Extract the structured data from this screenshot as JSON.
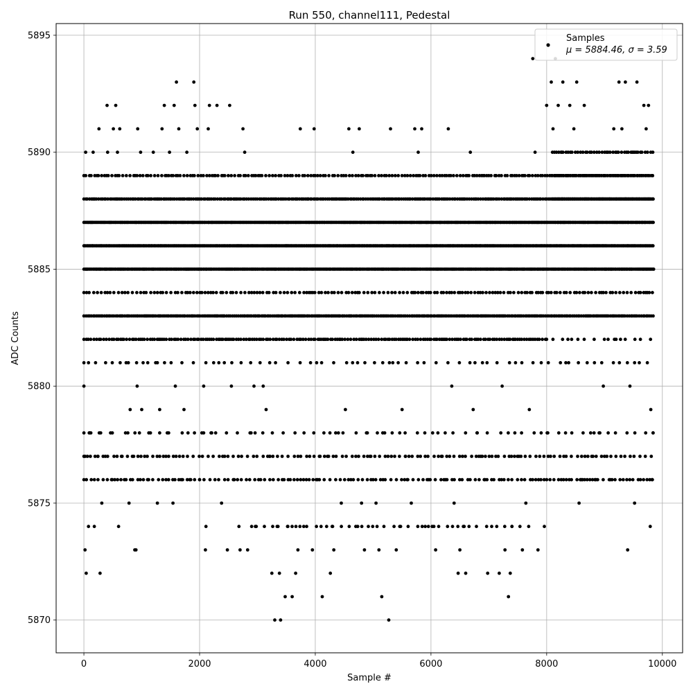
{
  "chart_data": {
    "type": "scatter",
    "title": "Run 550, channel111, Pedestal",
    "xlabel": "Sample #",
    "ylabel": "ADC Counts",
    "xlim": [
      -480,
      10350
    ],
    "ylim": [
      5868.6,
      5895.5
    ],
    "x_ticks": [
      0,
      2000,
      4000,
      6000,
      8000,
      10000
    ],
    "x_tick_labels": [
      "0",
      "2000",
      "4000",
      "6000",
      "8000",
      "10000"
    ],
    "y_ticks": [
      5870,
      5875,
      5880,
      5885,
      5890,
      5895
    ],
    "y_tick_labels": [
      "5870",
      "5875",
      "5880",
      "5885",
      "5890",
      "5895"
    ],
    "grid": true,
    "legend": {
      "position": "top-right",
      "series_label": "Samples",
      "stats_label": "μ = 5884.46, σ = 3.59"
    },
    "marker_color": "#000000",
    "series": [
      {
        "name": "Samples",
        "points": [
          [
            0,
            5880
          ],
          [
            20,
            5877
          ],
          [
            20,
            5873
          ],
          [
            30,
            5890
          ],
          [
            40,
            5872
          ],
          [
            60,
            5877
          ],
          [
            80,
            5874
          ],
          [
            80,
            5881
          ],
          [
            100,
            5878
          ],
          [
            120,
            5878
          ],
          [
            160,
            5890
          ],
          [
            180,
            5874
          ],
          [
            240,
            5877
          ],
          [
            260,
            5891
          ],
          [
            280,
            5872
          ],
          [
            290,
            5878
          ],
          [
            310,
            5875
          ],
          [
            370,
            5877
          ],
          [
            400,
            5892
          ],
          [
            410,
            5890
          ],
          [
            460,
            5878
          ],
          [
            490,
            5876
          ],
          [
            510,
            5891
          ],
          [
            550,
            5892
          ],
          [
            580,
            5890
          ],
          [
            600,
            5874
          ],
          [
            620,
            5891
          ],
          [
            660,
            5877
          ],
          [
            700,
            5876
          ],
          [
            730,
            5881
          ],
          [
            760,
            5878
          ],
          [
            780,
            5875
          ],
          [
            800,
            5879
          ],
          [
            860,
            5877
          ],
          [
            880,
            5873
          ],
          [
            900,
            5873
          ],
          [
            920,
            5880
          ],
          [
            930,
            5891
          ],
          [
            960,
            5878
          ],
          [
            980,
            5890
          ],
          [
            1000,
            5879
          ],
          [
            1050,
            5877
          ],
          [
            1100,
            5876
          ],
          [
            1150,
            5878
          ],
          [
            1200,
            5890
          ],
          [
            1240,
            5881
          ],
          [
            1270,
            5875
          ],
          [
            1310,
            5879
          ],
          [
            1350,
            5891
          ],
          [
            1390,
            5892
          ],
          [
            1420,
            5876
          ],
          [
            1440,
            5878
          ],
          [
            1480,
            5890
          ],
          [
            1540,
            5875
          ],
          [
            1560,
            5892
          ],
          [
            1580,
            5880
          ],
          [
            1600,
            5893
          ],
          [
            1640,
            5891
          ],
          [
            1680,
            5876
          ],
          [
            1730,
            5879
          ],
          [
            1780,
            5890
          ],
          [
            1800,
            5878
          ],
          [
            1830,
            5876
          ],
          [
            1880,
            5889
          ],
          [
            1900,
            5893
          ],
          [
            1920,
            5892
          ],
          [
            1960,
            5891
          ],
          [
            2000,
            5876
          ],
          [
            2040,
            5878
          ],
          [
            2070,
            5880
          ],
          [
            2100,
            5873
          ],
          [
            2110,
            5874
          ],
          [
            2150,
            5891
          ],
          [
            2170,
            5892
          ],
          [
            2210,
            5878
          ],
          [
            2300,
            5892
          ],
          [
            2380,
            5875
          ],
          [
            2400,
            5877
          ],
          [
            2480,
            5873
          ],
          [
            2520,
            5892
          ],
          [
            2550,
            5880
          ],
          [
            2600,
            5876
          ],
          [
            2680,
            5874
          ],
          [
            2700,
            5873
          ],
          [
            2750,
            5891
          ],
          [
            2780,
            5890
          ],
          [
            2830,
            5873
          ],
          [
            2890,
            5878
          ],
          [
            2940,
            5880
          ],
          [
            2980,
            5874
          ],
          [
            3020,
            5876
          ],
          [
            3100,
            5880
          ],
          [
            3150,
            5879
          ],
          [
            3210,
            5877
          ],
          [
            3250,
            5872
          ],
          [
            3300,
            5870
          ],
          [
            3340,
            5874
          ],
          [
            3380,
            5872
          ],
          [
            3400,
            5870
          ],
          [
            3430,
            5876
          ],
          [
            3480,
            5871
          ],
          [
            3520,
            5874
          ],
          [
            3600,
            5871
          ],
          [
            3660,
            5872
          ],
          [
            3700,
            5873
          ],
          [
            3740,
            5891
          ],
          [
            3800,
            5874
          ],
          [
            3880,
            5888
          ],
          [
            3950,
            5873
          ],
          [
            3980,
            5891
          ],
          [
            4040,
            5876
          ],
          [
            4070,
            5877
          ],
          [
            4100,
            5874
          ],
          [
            4120,
            5871
          ],
          [
            4160,
            5882
          ],
          [
            4230,
            5877
          ],
          [
            4260,
            5872
          ],
          [
            4300,
            5874
          ],
          [
            4320,
            5873
          ],
          [
            4400,
            5878
          ],
          [
            4450,
            5875
          ],
          [
            4520,
            5879
          ],
          [
            4580,
            5891
          ],
          [
            4650,
            5890
          ],
          [
            4700,
            5874
          ],
          [
            4760,
            5891
          ],
          [
            4800,
            5875
          ],
          [
            4850,
            5873
          ],
          [
            4900,
            5878
          ],
          [
            4960,
            5877
          ],
          [
            5000,
            5876
          ],
          [
            5050,
            5875
          ],
          [
            5100,
            5873
          ],
          [
            5150,
            5871
          ],
          [
            5200,
            5878
          ],
          [
            5270,
            5870
          ],
          [
            5300,
            5891
          ],
          [
            5340,
            5881
          ],
          [
            5400,
            5873
          ],
          [
            5460,
            5874
          ],
          [
            5500,
            5879
          ],
          [
            5560,
            5877
          ],
          [
            5600,
            5876
          ],
          [
            5660,
            5875
          ],
          [
            5720,
            5891
          ],
          [
            5780,
            5890
          ],
          [
            5840,
            5891
          ],
          [
            5900,
            5874
          ],
          [
            5960,
            5876
          ],
          [
            6020,
            5874
          ],
          [
            6080,
            5873
          ],
          [
            6120,
            5878
          ],
          [
            6180,
            5877
          ],
          [
            6250,
            5876
          ],
          [
            6300,
            5891
          ],
          [
            6360,
            5880
          ],
          [
            6400,
            5875
          ],
          [
            6470,
            5872
          ],
          [
            6500,
            5873
          ],
          [
            6560,
            5874
          ],
          [
            6600,
            5872
          ],
          [
            6680,
            5890
          ],
          [
            6730,
            5879
          ],
          [
            6800,
            5878
          ],
          [
            6860,
            5877
          ],
          [
            6920,
            5876
          ],
          [
            6980,
            5872
          ],
          [
            7050,
            5874
          ],
          [
            7120,
            5889
          ],
          [
            7180,
            5872
          ],
          [
            7230,
            5880
          ],
          [
            7280,
            5873
          ],
          [
            7340,
            5871
          ],
          [
            7370,
            5872
          ],
          [
            7400,
            5874
          ],
          [
            7450,
            5878
          ],
          [
            7520,
            5877
          ],
          [
            7580,
            5873
          ],
          [
            7640,
            5875
          ],
          [
            7700,
            5879
          ],
          [
            7760,
            5894
          ],
          [
            7800,
            5890
          ],
          [
            7850,
            5873
          ],
          [
            7900,
            5876
          ],
          [
            7960,
            5874
          ],
          [
            8000,
            5892
          ],
          [
            8020,
            5878
          ],
          [
            8080,
            5893
          ],
          [
            8110,
            5891
          ],
          [
            8150,
            5894
          ],
          [
            8200,
            5892
          ],
          [
            8260,
            5890
          ],
          [
            8280,
            5893
          ],
          [
            8340,
            5876
          ],
          [
            8380,
            5881
          ],
          [
            8400,
            5892
          ],
          [
            8470,
            5891
          ],
          [
            8520,
            5893
          ],
          [
            8560,
            5875
          ],
          [
            8600,
            5876
          ],
          [
            8650,
            5892
          ],
          [
            8700,
            5876
          ],
          [
            8760,
            5878
          ],
          [
            8800,
            5877
          ],
          [
            8850,
            5876
          ],
          [
            8920,
            5878
          ],
          [
            8980,
            5880
          ],
          [
            9040,
            5877
          ],
          [
            9100,
            5876
          ],
          [
            9160,
            5891
          ],
          [
            9200,
            5882
          ],
          [
            9250,
            5893
          ],
          [
            9300,
            5891
          ],
          [
            9360,
            5893
          ],
          [
            9400,
            5873
          ],
          [
            9440,
            5880
          ],
          [
            9480,
            5890
          ],
          [
            9520,
            5875
          ],
          [
            9560,
            5893
          ],
          [
            9620,
            5876
          ],
          [
            9680,
            5892
          ],
          [
            9720,
            5891
          ],
          [
            9760,
            5892
          ],
          [
            9790,
            5874
          ],
          [
            9800,
            5879
          ],
          [
            9820,
            5876
          ],
          [
            9840,
            5878
          ]
        ]
      }
    ],
    "dense_bands": [
      {
        "y": 5882,
        "x_range": [
          0,
          8000
        ],
        "spacing": 38
      },
      {
        "y": 5882,
        "x_range": [
          8000,
          9850
        ],
        "spacing": 120
      },
      {
        "y": 5883,
        "x_range": [
          0,
          9850
        ],
        "spacing": 26
      },
      {
        "y": 5884,
        "x_range": [
          0,
          9850
        ],
        "spacing": 55
      },
      {
        "y": 5885,
        "x_range": [
          0,
          9850
        ],
        "spacing": 20
      },
      {
        "y": 5886,
        "x_range": [
          0,
          9850
        ],
        "spacing": 18
      },
      {
        "y": 5887,
        "x_range": [
          0,
          9850
        ],
        "spacing": 19
      },
      {
        "y": 5888,
        "x_range": [
          0,
          9850
        ],
        "spacing": 28
      },
      {
        "y": 5889,
        "x_range": [
          0,
          9850
        ],
        "spacing": 45
      },
      {
        "y": 5890,
        "x_range": [
          8100,
          9850
        ],
        "spacing": 40
      },
      {
        "y": 5876,
        "x_range": [
          0,
          9850
        ],
        "spacing": 70
      },
      {
        "y": 5877,
        "x_range": [
          0,
          9850
        ],
        "spacing": 75
      },
      {
        "y": 5881,
        "x_range": [
          0,
          9850
        ],
        "spacing": 150
      },
      {
        "y": 5878,
        "x_range": [
          0,
          9850
        ],
        "spacing": 160
      },
      {
        "y": 5874,
        "x_range": [
          2900,
          7800
        ],
        "spacing": 120
      },
      {
        "y": 5889,
        "x_range": [
          8100,
          9850
        ],
        "spacing": 25
      },
      {
        "y": 5888,
        "x_range": [
          8100,
          9850
        ],
        "spacing": 20
      }
    ]
  }
}
